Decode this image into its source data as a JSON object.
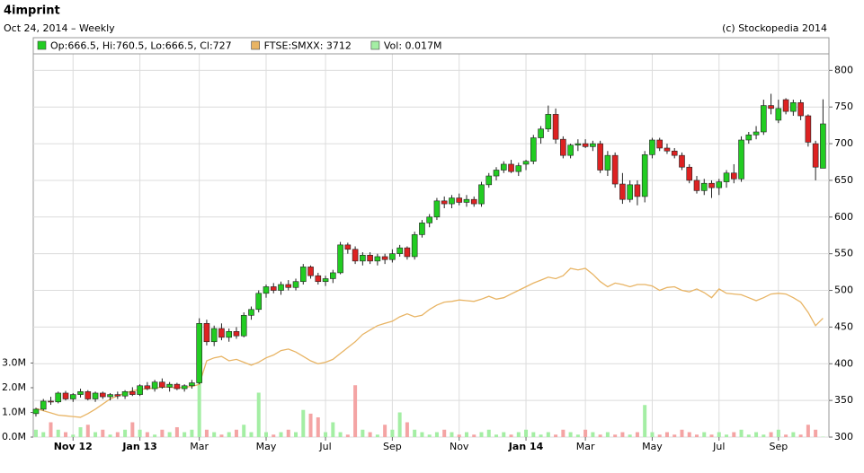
{
  "chart_data": {
    "type": "candlestick",
    "title": "4imprint",
    "subtitle": "Oct 24, 2014 – Weekly",
    "credit": "(c) Stockopedia 2014",
    "xlim": [
      -0.36,
      106.8
    ],
    "xticks": [
      {
        "value": 5,
        "label": "Nov 12"
      },
      {
        "value": 14,
        "label": "Jan 13"
      },
      {
        "value": 22,
        "label": "Mar"
      },
      {
        "value": 31,
        "label": "May"
      },
      {
        "value": 39,
        "label": "Jul"
      },
      {
        "value": 48,
        "label": "Sep"
      },
      {
        "value": 57,
        "label": "Nov"
      },
      {
        "value": 66,
        "label": "Jan 14"
      },
      {
        "value": 74,
        "label": "Mar"
      },
      {
        "value": 83,
        "label": "May"
      },
      {
        "value": 92,
        "label": "Jul"
      },
      {
        "value": 100,
        "label": "Sep"
      }
    ],
    "ylim": [
      300,
      820
    ],
    "yticks": [
      300,
      350,
      400,
      450,
      500,
      550,
      600,
      650,
      700,
      750,
      800
    ],
    "y2lim": [
      0,
      15.45
    ],
    "y2ticks": [
      {
        "value": 0,
        "label": "0.0M"
      },
      {
        "value": 1,
        "label": "1.0M"
      },
      {
        "value": 2,
        "label": "2.0M"
      },
      {
        "value": 3,
        "label": "3.0M"
      }
    ],
    "y3lim": [
      2902,
      5502
    ],
    "grid": true,
    "series": [
      {
        "name": "Op:666.5, Hi:760.5, Lo:666.5, Cl:727",
        "color": "#22cc22",
        "down_color": "#dd2222",
        "open": [
          332,
          338,
          349,
          348,
          360,
          352,
          358,
          362,
          352,
          360,
          355,
          358,
          356,
          362,
          358,
          370,
          366,
          375,
          368,
          372,
          366,
          370,
          374,
          455,
          430,
          448,
          436,
          444,
          438,
          466,
          474,
          496,
          505,
          500,
          508,
          504,
          512,
          532,
          520,
          512,
          516,
          524,
          562,
          556,
          540,
          548,
          540,
          546,
          542,
          550,
          558,
          546,
          576,
          592,
          600,
          622,
          618,
          626,
          620,
          624,
          618,
          644,
          656,
          664,
          672,
          662,
          672,
          676,
          708,
          720,
          740,
          706,
          684,
          698,
          700,
          696,
          700,
          664,
          684,
          645,
          624,
          644,
          628,
          685,
          705,
          694,
          690,
          684,
          668,
          650,
          636,
          646,
          640,
          648,
          660,
          652,
          705,
          712,
          716,
          752,
          732,
          760,
          744,
          756,
          738,
          700,
          666.5
        ],
        "high": [
          340,
          352,
          355,
          362,
          363,
          360,
          366,
          364,
          362,
          362,
          360,
          362,
          364,
          368,
          372,
          375,
          378,
          380,
          375,
          374,
          372,
          378,
          462,
          460,
          452,
          455,
          448,
          450,
          470,
          478,
          500,
          508,
          510,
          512,
          514,
          516,
          536,
          534,
          524,
          520,
          528,
          566,
          565,
          560,
          552,
          552,
          550,
          550,
          556,
          562,
          560,
          580,
          596,
          604,
          626,
          628,
          630,
          632,
          630,
          628,
          648,
          660,
          668,
          676,
          678,
          674,
          678,
          712,
          724,
          752,
          748,
          710,
          700,
          706,
          706,
          704,
          704,
          690,
          688,
          660,
          650,
          650,
          690,
          708,
          708,
          700,
          694,
          688,
          672,
          656,
          652,
          650,
          652,
          664,
          672,
          710,
          716,
          724,
          760,
          768,
          760,
          762,
          760,
          760,
          740,
          704,
          760.5
        ],
        "low": [
          328,
          336,
          344,
          346,
          350,
          348,
          354,
          350,
          348,
          352,
          350,
          352,
          352,
          356,
          356,
          364,
          362,
          366,
          362,
          364,
          362,
          366,
          372,
          425,
          424,
          432,
          430,
          434,
          436,
          460,
          470,
          490,
          496,
          494,
          500,
          500,
          508,
          516,
          508,
          506,
          510,
          522,
          550,
          536,
          534,
          536,
          534,
          536,
          538,
          546,
          542,
          542,
          572,
          586,
          596,
          612,
          612,
          616,
          614,
          614,
          614,
          640,
          650,
          660,
          660,
          656,
          664,
          672,
          700,
          716,
          700,
          680,
          680,
          690,
          694,
          690,
          660,
          656,
          640,
          618,
          620,
          616,
          620,
          680,
          690,
          686,
          680,
          664,
          646,
          632,
          630,
          626,
          630,
          640,
          646,
          648,
          700,
          706,
          712,
          740,
          728,
          740,
          738,
          732,
          696,
          650,
          666.5
        ],
        "close": [
          338,
          349,
          348,
          360,
          352,
          358,
          362,
          352,
          360,
          355,
          358,
          356,
          362,
          358,
          370,
          366,
          375,
          368,
          372,
          366,
          370,
          374,
          455,
          430,
          448,
          436,
          444,
          438,
          466,
          474,
          496,
          505,
          500,
          508,
          504,
          512,
          532,
          520,
          512,
          516,
          524,
          562,
          556,
          540,
          548,
          540,
          546,
          542,
          550,
          558,
          546,
          576,
          592,
          600,
          622,
          618,
          626,
          620,
          624,
          618,
          644,
          656,
          664,
          672,
          662,
          670,
          676,
          708,
          720,
          740,
          706,
          684,
          698,
          700,
          696,
          700,
          664,
          684,
          645,
          624,
          644,
          628,
          685,
          705,
          694,
          690,
          684,
          668,
          650,
          636,
          646,
          640,
          648,
          660,
          652,
          705,
          712,
          716,
          752,
          748,
          748,
          744,
          756,
          738,
          702,
          668,
          727
        ]
      },
      {
        "name": "FTSE:SMXX: 3712",
        "color": "#e8b464",
        "axis": "y3",
        "values": [
          3097,
          3082,
          3067,
          3052,
          3047,
          3042,
          3037,
          3062,
          3092,
          3127,
          3162,
          3182,
          3202,
          3217,
          3227,
          3232,
          3237,
          3242,
          3242,
          3237,
          3242,
          3247,
          3262,
          3422,
          3442,
          3452,
          3422,
          3432,
          3412,
          3392,
          3412,
          3442,
          3462,
          3492,
          3502,
          3482,
          3452,
          3422,
          3402,
          3412,
          3432,
          3472,
          3512,
          3552,
          3602,
          3632,
          3662,
          3677,
          3692,
          3722,
          3742,
          3722,
          3732,
          3772,
          3802,
          3822,
          3827,
          3837,
          3832,
          3827,
          3842,
          3862,
          3842,
          3852,
          3877,
          3902,
          3927,
          3952,
          3972,
          3992,
          3982,
          4002,
          4052,
          4042,
          4052,
          4012,
          3962,
          3927,
          3952,
          3942,
          3927,
          3942,
          3942,
          3932,
          3902,
          3922,
          3927,
          3902,
          3892,
          3912,
          3887,
          3852,
          3912,
          3882,
          3877,
          3872,
          3852,
          3832,
          3852,
          3877,
          3882,
          3877,
          3852,
          3822,
          3752,
          3662,
          3712
        ]
      },
      {
        "name": "Vol: 0.017M",
        "color": "#a4eea4",
        "down_color": "#f4a4a4",
        "axis": "y2",
        "values": [
          0.3,
          0.2,
          0.6,
          0.3,
          0.2,
          0.1,
          0.4,
          0.5,
          0.2,
          0.3,
          0.1,
          0.2,
          0.3,
          0.6,
          0.3,
          0.2,
          0.1,
          0.3,
          0.2,
          0.4,
          0.2,
          0.3,
          2.4,
          0.3,
          0.2,
          0.1,
          0.2,
          0.3,
          0.5,
          0.2,
          1.8,
          0.2,
          0.1,
          0.2,
          0.3,
          0.2,
          1.1,
          0.95,
          0.8,
          0.2,
          0.6,
          0.2,
          0.1,
          2.1,
          0.3,
          0.2,
          0.1,
          0.5,
          0.3,
          1.0,
          0.6,
          0.3,
          0.2,
          0.1,
          0.2,
          0.3,
          0.2,
          0.1,
          0.2,
          0.1,
          0.2,
          0.3,
          0.1,
          0.2,
          0.1,
          0.2,
          0.3,
          0.2,
          0.1,
          0.2,
          0.1,
          0.3,
          0.2,
          0.1,
          0.3,
          0.2,
          0.1,
          0.2,
          0.1,
          0.2,
          0.1,
          0.2,
          1.3,
          0.2,
          0.1,
          0.2,
          0.1,
          0.3,
          0.2,
          0.1,
          0.2,
          0.1,
          0.2,
          0.1,
          0.2,
          0.3,
          0.1,
          0.2,
          0.1,
          0.2,
          0.3,
          0.1,
          0.2,
          0.1,
          0.5,
          0.3,
          0.017
        ]
      }
    ]
  }
}
